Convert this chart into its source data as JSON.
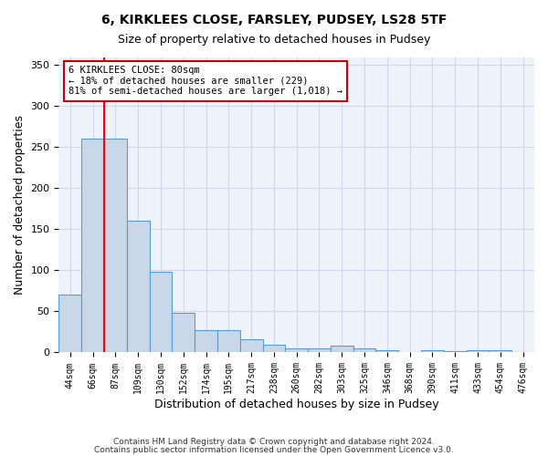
{
  "title1": "6, KIRKLEES CLOSE, FARSLEY, PUDSEY, LS28 5TF",
  "title2": "Size of property relative to detached houses in Pudsey",
  "xlabel": "Distribution of detached houses by size in Pudsey",
  "ylabel": "Number of detached properties",
  "bin_labels": [
    "44sqm",
    "66sqm",
    "87sqm",
    "109sqm",
    "130sqm",
    "152sqm",
    "174sqm",
    "195sqm",
    "217sqm",
    "238sqm",
    "260sqm",
    "282sqm",
    "303sqm",
    "325sqm",
    "346sqm",
    "368sqm",
    "390sqm",
    "411sqm",
    "433sqm",
    "454sqm",
    "476sqm"
  ],
  "bar_heights": [
    70,
    260,
    260,
    160,
    98,
    48,
    27,
    27,
    16,
    9,
    5,
    5,
    8,
    5,
    3,
    0,
    3,
    2,
    3,
    3,
    0
  ],
  "bar_color": "#c8d8e8",
  "bar_edge_color": "#5b9bd5",
  "red_line_x": 1.5,
  "annotation_title": "6 KIRKLEES CLOSE: 80sqm",
  "annotation_line1": "← 18% of detached houses are smaller (229)",
  "annotation_line2": "81% of semi-detached houses are larger (1,018) →",
  "annotation_box_color": "#ffffff",
  "annotation_box_edge": "#cc0000",
  "ylim": [
    0,
    360
  ],
  "yticks": [
    0,
    50,
    100,
    150,
    200,
    250,
    300,
    350
  ],
  "grid_color": "#d0d8e8",
  "background_color": "#eef2fa",
  "footnote1": "Contains HM Land Registry data © Crown copyright and database right 2024.",
  "footnote2": "Contains public sector information licensed under the Open Government Licence v3.0."
}
